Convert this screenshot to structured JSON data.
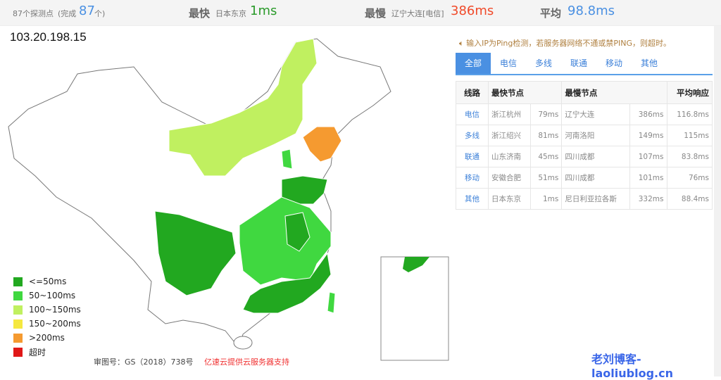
{
  "summary": {
    "probe_count": "87个探测点",
    "done_prefix": "(完成",
    "done_count": "87",
    "done_suffix": "个)",
    "fastest_label": "最快",
    "fastest_node": "日本东京",
    "fastest_value": "1ms",
    "slowest_label": "最慢",
    "slowest_node": "辽宁大连[电信]",
    "slowest_value": "386ms",
    "avg_label": "平均",
    "avg_value": "98.8ms"
  },
  "ip": "103.20.198.15",
  "notice": "输入IP为Ping检测，若服务器网络不通或禁PING，则超时。",
  "tabs": [
    {
      "label": "全部",
      "active": true
    },
    {
      "label": "电信"
    },
    {
      "label": "多线"
    },
    {
      "label": "联通"
    },
    {
      "label": "移动"
    },
    {
      "label": "其他"
    }
  ],
  "table": {
    "headers": [
      "线路",
      "最快节点",
      "最慢节点",
      "平均响应"
    ],
    "rows": [
      {
        "line": "电信",
        "fast": "浙江杭州",
        "fast_ms": "79ms",
        "slow": "辽宁大连",
        "slow_ms": "386ms",
        "avg": "116.8ms"
      },
      {
        "line": "多线",
        "fast": "浙江绍兴",
        "fast_ms": "81ms",
        "slow": "河南洛阳",
        "slow_ms": "149ms",
        "avg": "115ms"
      },
      {
        "line": "联通",
        "fast": "山东济南",
        "fast_ms": "45ms",
        "slow": "四川成都",
        "slow_ms": "107ms",
        "avg": "83.8ms"
      },
      {
        "line": "移动",
        "fast": "安徽合肥",
        "fast_ms": "51ms",
        "slow": "四川成都",
        "slow_ms": "101ms",
        "avg": "76ms"
      },
      {
        "line": "其他",
        "fast": "日本东京",
        "fast_ms": "1ms",
        "slow": "尼日利亚拉各斯",
        "slow_ms": "332ms",
        "avg": "88.4ms"
      }
    ]
  },
  "legend": [
    {
      "label": "<=50ms",
      "color": "#22a820"
    },
    {
      "label": "50~100ms",
      "color": "#40d840"
    },
    {
      "label": "100~150ms",
      "color": "#c0f060"
    },
    {
      "label": "150~200ms",
      "color": "#f5e840"
    },
    {
      "label": ">200ms",
      "color": "#f59a30"
    },
    {
      "label": "超时",
      "color": "#e01818"
    }
  ],
  "footer": {
    "approval": "审图号：GS（2018）738号",
    "sponsor": "亿速云提供云服务器支持"
  },
  "watermark": "老刘博客-laoliublog.cn",
  "colors": {
    "accent": "#4a90e2",
    "fast": "#2a9a2a",
    "slow": "#f04a2a",
    "avg": "#4a90e2"
  }
}
